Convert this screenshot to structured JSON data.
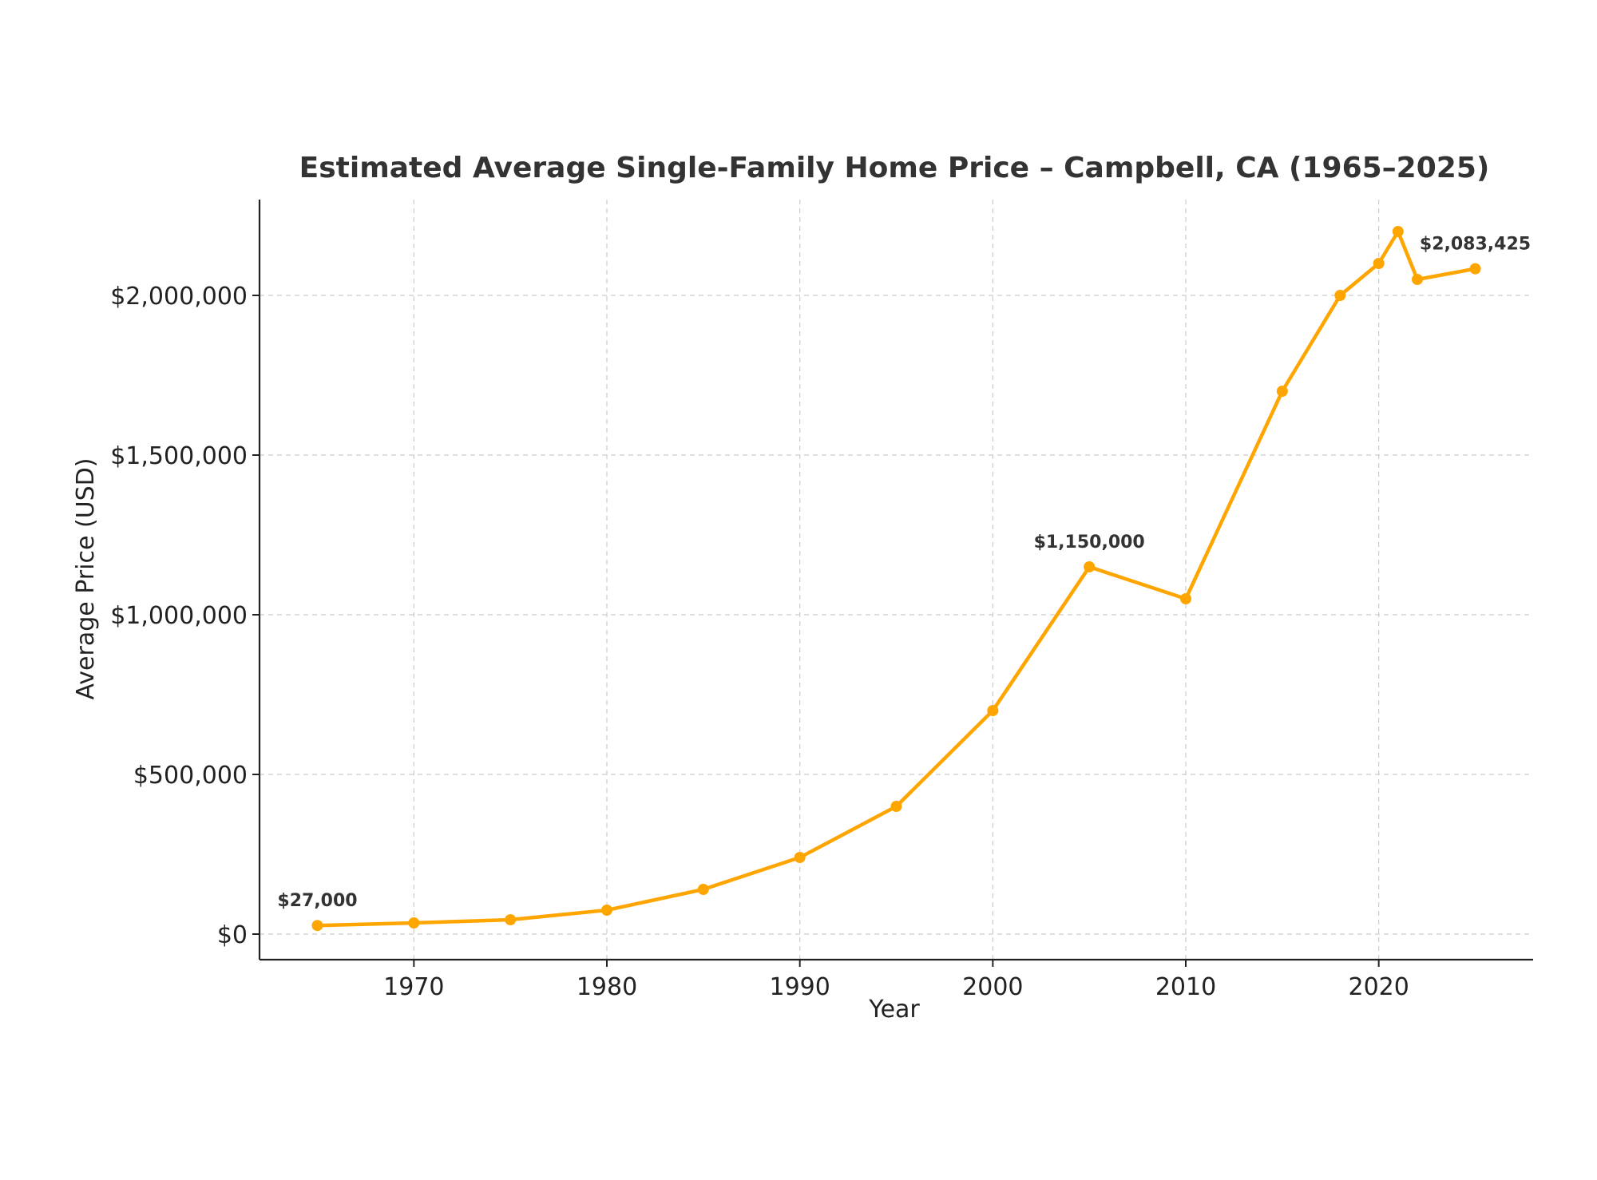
{
  "chart_data": {
    "type": "line",
    "title": "Estimated Average Single-Family Home Price – Campbell, CA (1965–2025)",
    "xlabel": "Year",
    "ylabel": "Average Price (USD)",
    "xlim": [
      1962,
      2028
    ],
    "ylim": [
      -80000,
      2300000
    ],
    "grid": true,
    "line_color": "#FFA500",
    "x_ticks": [
      1970,
      1980,
      1990,
      2000,
      2010,
      2020
    ],
    "x_tick_labels": [
      "1970",
      "1980",
      "1990",
      "2000",
      "2010",
      "2020"
    ],
    "y_ticks": [
      0,
      500000,
      1000000,
      1500000,
      2000000
    ],
    "y_tick_labels": [
      "$0",
      "$500,000",
      "$1,000,000",
      "$1,500,000",
      "$2,000,000"
    ],
    "series": [
      {
        "name": "Average Price",
        "x": [
          1965,
          1970,
          1975,
          1980,
          1985,
          1990,
          1995,
          2000,
          2005,
          2010,
          2015,
          2018,
          2020,
          2021,
          2022,
          2025
        ],
        "values": [
          27000,
          35000,
          45000,
          75000,
          140000,
          240000,
          400000,
          700000,
          1150000,
          1050000,
          1700000,
          2000000,
          2100000,
          2200000,
          2050000,
          2083425
        ]
      }
    ],
    "annotations": [
      {
        "x": 1965,
        "y": 27000,
        "text": "$27,000"
      },
      {
        "x": 2005,
        "y": 1150000,
        "text": "$1,150,000"
      },
      {
        "x": 2025,
        "y": 2083425,
        "text": "$2,083,425"
      }
    ]
  }
}
